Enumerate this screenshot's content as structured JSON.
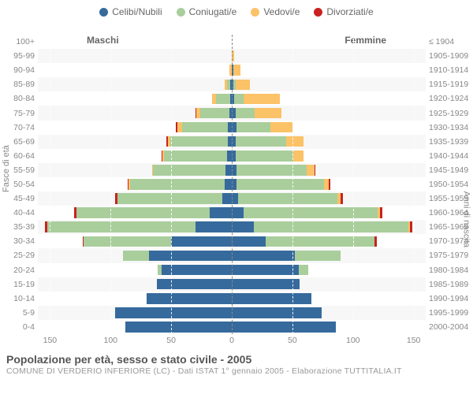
{
  "legend": [
    {
      "label": "Celibi/Nubili",
      "color": "#366a9c"
    },
    {
      "label": "Coniugati/e",
      "color": "#a9ce9b"
    },
    {
      "label": "Vedovi/e",
      "color": "#fbc267"
    },
    {
      "label": "Divorziati/e",
      "color": "#c72320"
    }
  ],
  "gender_labels": {
    "male": "Maschi",
    "female": "Femmine"
  },
  "axis_titles": {
    "left": "Fasce di età",
    "right": "Anni di nascita"
  },
  "series_colors": {
    "celibi": "#366a9c",
    "coniugati": "#a9ce9b",
    "vedovi": "#fbc267",
    "divorziati": "#c72320"
  },
  "x_axis": {
    "max": 160,
    "ticks": [
      150,
      100,
      50,
      0,
      50,
      100,
      150
    ]
  },
  "footer": {
    "title": "Popolazione per età, sesso e stato civile - 2005",
    "subtitle": "COMUNE DI VERDERIO INFERIORE (LC) - Dati ISTAT 1° gennaio 2005 - Elaborazione TUTTITALIA.IT"
  },
  "background_color": "#ffffff",
  "alt_row_color": "#f0f0f0",
  "rows": [
    {
      "age": "100+",
      "birth": "≤ 1904",
      "m": {
        "cel": 0,
        "con": 0,
        "ved": 0,
        "div": 0
      },
      "f": {
        "cel": 0,
        "con": 0,
        "ved": 0,
        "div": 0
      }
    },
    {
      "age": "95-99",
      "birth": "1905-1909",
      "m": {
        "cel": 0,
        "con": 0,
        "ved": 0,
        "div": 0
      },
      "f": {
        "cel": 0,
        "con": 0,
        "ved": 2,
        "div": 0
      }
    },
    {
      "age": "90-94",
      "birth": "1910-1914",
      "m": {
        "cel": 0,
        "con": 0,
        "ved": 2,
        "div": 0
      },
      "f": {
        "cel": 1,
        "con": 0,
        "ved": 6,
        "div": 0
      }
    },
    {
      "age": "85-89",
      "birth": "1915-1919",
      "m": {
        "cel": 1,
        "con": 3,
        "ved": 2,
        "div": 0
      },
      "f": {
        "cel": 1,
        "con": 2,
        "ved": 12,
        "div": 0
      }
    },
    {
      "age": "80-84",
      "birth": "1920-1924",
      "m": {
        "cel": 1,
        "con": 12,
        "ved": 3,
        "div": 0
      },
      "f": {
        "cel": 2,
        "con": 8,
        "ved": 30,
        "div": 0
      }
    },
    {
      "age": "75-79",
      "birth": "1925-1929",
      "m": {
        "cel": 2,
        "con": 24,
        "ved": 3,
        "div": 1
      },
      "f": {
        "cel": 3,
        "con": 16,
        "ved": 22,
        "div": 0
      }
    },
    {
      "age": "70-74",
      "birth": "1930-1934",
      "m": {
        "cel": 3,
        "con": 38,
        "ved": 4,
        "div": 1
      },
      "f": {
        "cel": 4,
        "con": 28,
        "ved": 18,
        "div": 0
      }
    },
    {
      "age": "65-69",
      "birth": "1935-1939",
      "m": {
        "cel": 3,
        "con": 48,
        "ved": 2,
        "div": 1
      },
      "f": {
        "cel": 3,
        "con": 42,
        "ved": 14,
        "div": 0
      }
    },
    {
      "age": "60-64",
      "birth": "1940-1944",
      "m": {
        "cel": 4,
        "con": 52,
        "ved": 1,
        "div": 1
      },
      "f": {
        "cel": 3,
        "con": 48,
        "ved": 8,
        "div": 0
      }
    },
    {
      "age": "55-59",
      "birth": "1945-1949",
      "m": {
        "cel": 5,
        "con": 60,
        "ved": 1,
        "div": 0
      },
      "f": {
        "cel": 4,
        "con": 58,
        "ved": 6,
        "div": 1
      }
    },
    {
      "age": "50-54",
      "birth": "1950-1954",
      "m": {
        "cel": 6,
        "con": 78,
        "ved": 1,
        "div": 1
      },
      "f": {
        "cel": 4,
        "con": 72,
        "ved": 4,
        "div": 1
      }
    },
    {
      "age": "45-49",
      "birth": "1955-1959",
      "m": {
        "cel": 8,
        "con": 86,
        "ved": 0,
        "div": 2
      },
      "f": {
        "cel": 5,
        "con": 82,
        "ved": 3,
        "div": 2
      }
    },
    {
      "age": "40-44",
      "birth": "1960-1964",
      "m": {
        "cel": 18,
        "con": 110,
        "ved": 0,
        "div": 2
      },
      "f": {
        "cel": 10,
        "con": 110,
        "ved": 2,
        "div": 2
      }
    },
    {
      "age": "35-39",
      "birth": "1965-1969",
      "m": {
        "cel": 30,
        "con": 122,
        "ved": 0,
        "div": 2
      },
      "f": {
        "cel": 18,
        "con": 128,
        "ved": 1,
        "div": 2
      }
    },
    {
      "age": "30-34",
      "birth": "1970-1974",
      "m": {
        "cel": 50,
        "con": 72,
        "ved": 0,
        "div": 1
      },
      "f": {
        "cel": 28,
        "con": 90,
        "ved": 0,
        "div": 2
      }
    },
    {
      "age": "25-29",
      "birth": "1975-1979",
      "m": {
        "cel": 68,
        "con": 22,
        "ved": 0,
        "div": 0
      },
      "f": {
        "cel": 52,
        "con": 38,
        "ved": 0,
        "div": 0
      }
    },
    {
      "age": "20-24",
      "birth": "1980-1984",
      "m": {
        "cel": 58,
        "con": 3,
        "ved": 0,
        "div": 0
      },
      "f": {
        "cel": 55,
        "con": 8,
        "ved": 0,
        "div": 0
      }
    },
    {
      "age": "15-19",
      "birth": "1985-1989",
      "m": {
        "cel": 62,
        "con": 0,
        "ved": 0,
        "div": 0
      },
      "f": {
        "cel": 56,
        "con": 0,
        "ved": 0,
        "div": 0
      }
    },
    {
      "age": "10-14",
      "birth": "1990-1994",
      "m": {
        "cel": 70,
        "con": 0,
        "ved": 0,
        "div": 0
      },
      "f": {
        "cel": 66,
        "con": 0,
        "ved": 0,
        "div": 0
      }
    },
    {
      "age": "5-9",
      "birth": "1995-1999",
      "m": {
        "cel": 96,
        "con": 0,
        "ved": 0,
        "div": 0
      },
      "f": {
        "cel": 74,
        "con": 0,
        "ved": 0,
        "div": 0
      }
    },
    {
      "age": "0-4",
      "birth": "2000-2004",
      "m": {
        "cel": 88,
        "con": 0,
        "ved": 0,
        "div": 0
      },
      "f": {
        "cel": 86,
        "con": 0,
        "ved": 0,
        "div": 0
      }
    }
  ]
}
